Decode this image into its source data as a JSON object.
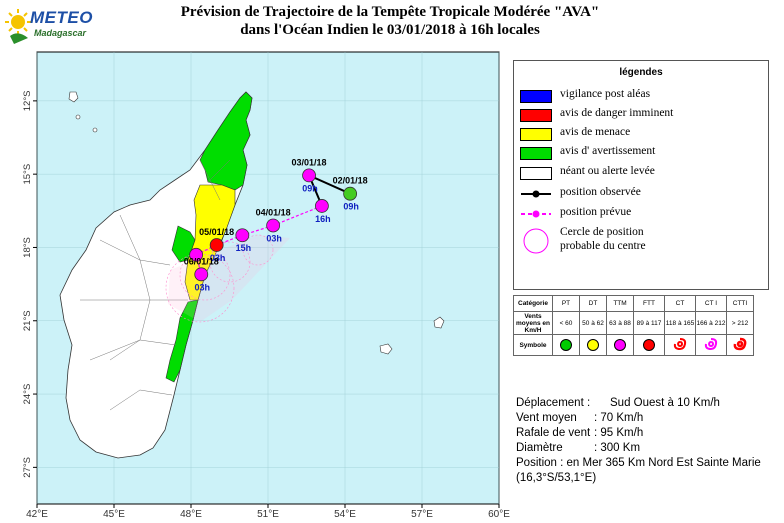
{
  "logo": {
    "name": "METEO",
    "sub": "Madagascar"
  },
  "title": {
    "line1": "Prévision de Trajectoire de la Tempête Tropicale Modérée  \"AVA\"",
    "line2": "dans l'Océan Indien  le 03/01/2018 à 16h locales"
  },
  "colors": {
    "sea": "#ccf2f8",
    "land": "#ffffff",
    "vigilance": "#0000ff",
    "danger": "#ff0000",
    "menace": "#ffff00",
    "avertissement": "#00dd00",
    "observed": "#000000",
    "forecast": "#ff00ff"
  },
  "map": {
    "lon_ticks": [
      "42°E",
      "45°E",
      "48°E",
      "51°E",
      "54°E",
      "57°E",
      "60°E"
    ],
    "lat_ticks": [
      "12°S",
      "15°S",
      "18°S",
      "21°S",
      "24°S",
      "27°S"
    ],
    "track_observed": [
      {
        "date": "02/01/18",
        "hour": "09h",
        "lon": 54.2,
        "lat": 15.8
      },
      {
        "date": "03/01/18",
        "hour": "09h",
        "lon": 52.6,
        "lat": 15.05
      },
      {
        "date": "",
        "hour": "16h",
        "lon": 53.1,
        "lat": 16.3
      }
    ],
    "track_forecast": [
      {
        "date": "04/01/18",
        "hour": "03h",
        "lon": 51.2,
        "lat": 17.1
      },
      {
        "date": "",
        "hour": "15h",
        "lon": 50.0,
        "lat": 17.5
      },
      {
        "date": "05/01/18",
        "hour": "03h",
        "lon": 49.0,
        "lat": 17.9
      },
      {
        "date": "",
        "hour": "",
        "lon": 48.2,
        "lat": 18.3
      },
      {
        "date": "06/01/18",
        "hour": "03h",
        "lon": 48.4,
        "lat": 19.1
      }
    ]
  },
  "legend": {
    "title": "légendes",
    "items": [
      {
        "label": "vigilance post aléas",
        "color": "#0000ff"
      },
      {
        "label": "avis de danger imminent",
        "color": "#ff0000"
      },
      {
        "label": "avis de menace",
        "color": "#ffff00"
      },
      {
        "label": "avis d' avertissement",
        "color": "#00dd00"
      },
      {
        "label": "néant ou alerte levée",
        "color": "#ffffff"
      }
    ],
    "observed": "position observée",
    "forecast": "position prévue",
    "circle_line1": "Cercle de position",
    "circle_line2": "probable du centre"
  },
  "categories": {
    "head": "Catégorie",
    "winds_label": "Vents moyens en Km/H",
    "symbol_label": "Symbole",
    "cols": [
      {
        "cat": "PT",
        "wind": "< 60",
        "color": "#00cc00"
      },
      {
        "cat": "DT",
        "wind": "50 à 62",
        "color": "#ffff00"
      },
      {
        "cat": "TTM",
        "wind": "63 à 88",
        "color": "#ff00ff"
      },
      {
        "cat": "FTT",
        "wind": "89 à 117",
        "color": "#ff0000"
      },
      {
        "cat": "CT",
        "wind": "118 à 165",
        "color": "#ff0000"
      },
      {
        "cat": "CT I",
        "wind": "166 à 212",
        "color": "#ff00ff"
      },
      {
        "cat": "CTTI",
        "wind": "> 212",
        "color": "#ff0000"
      }
    ]
  },
  "info": {
    "deplacement_k": "Déplacement :",
    "deplacement_v": "Sud Ouest à 10  Km/h",
    "vent_k": "Vent moyen",
    "vent_v": ": 70  Km/h",
    "rafale_k": "Rafale de vent",
    "rafale_v": ": 95  Km/h",
    "diametre_k": "Diamètre",
    "diametre_v": ": 300 Km",
    "position_line1": "Position : en Mer 365 Km Nord Est Sainte Marie",
    "position_line2": "(16,3°S/53,1°E)"
  }
}
